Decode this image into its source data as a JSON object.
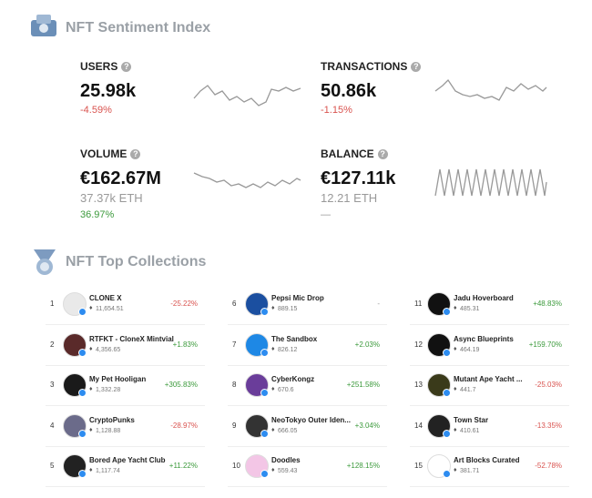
{
  "sentiment": {
    "title": "NFT Sentiment Index",
    "metrics": [
      {
        "label": "USERS",
        "value": "25.98k",
        "change": "-4.59%"
      },
      {
        "label": "TRANSACTIONS",
        "value": "50.86k",
        "change": "-1.15%"
      },
      {
        "label": "VOLUME",
        "value": "€162.67M",
        "sub": "37.37k ETH",
        "change": "36.97%"
      },
      {
        "label": "BALANCE",
        "value": "€127.11k",
        "sub": "12.21 ETH",
        "change": "—"
      }
    ]
  },
  "collections": {
    "title": "NFT Top Collections",
    "items": [
      {
        "rank": "1",
        "name": "CLONE X",
        "value": "11,654.51",
        "change": "-25.22%"
      },
      {
        "rank": "2",
        "name": "RTFKT - CloneX Mintvial",
        "value": "4,356.65",
        "change": "+1.83%"
      },
      {
        "rank": "3",
        "name": "My Pet Hooligan",
        "value": "1,332.28",
        "change": "+305.83%"
      },
      {
        "rank": "4",
        "name": "CryptoPunks",
        "value": "1,128.88",
        "change": "-28.97%"
      },
      {
        "rank": "5",
        "name": "Bored Ape Yacht Club",
        "value": "1,117.74",
        "change": "+11.22%"
      },
      {
        "rank": "6",
        "name": "Pepsi Mic Drop",
        "value": "889.15",
        "change": "-"
      },
      {
        "rank": "7",
        "name": "The Sandbox",
        "value": "826.12",
        "change": "+2.03%"
      },
      {
        "rank": "8",
        "name": "CyberKongz",
        "value": "670.6",
        "change": "+251.58%"
      },
      {
        "rank": "9",
        "name": "NeoTokyo Outer Iden...",
        "value": "666.05",
        "change": "+3.04%"
      },
      {
        "rank": "10",
        "name": "Doodles",
        "value": "559.43",
        "change": "+128.15%"
      },
      {
        "rank": "11",
        "name": "Jadu Hoverboard",
        "value": "485.31",
        "change": "+48.83%"
      },
      {
        "rank": "12",
        "name": "Async Blueprints",
        "value": "464.19",
        "change": "+159.70%"
      },
      {
        "rank": "13",
        "name": "Mutant Ape Yacht ...",
        "value": "441.7",
        "change": "-25.03%"
      },
      {
        "rank": "14",
        "name": "Town Star",
        "value": "410.61",
        "change": "-13.35%"
      },
      {
        "rank": "15",
        "name": "Art Blocks Curated",
        "value": "381.71",
        "change": "-52.78%"
      }
    ]
  }
}
